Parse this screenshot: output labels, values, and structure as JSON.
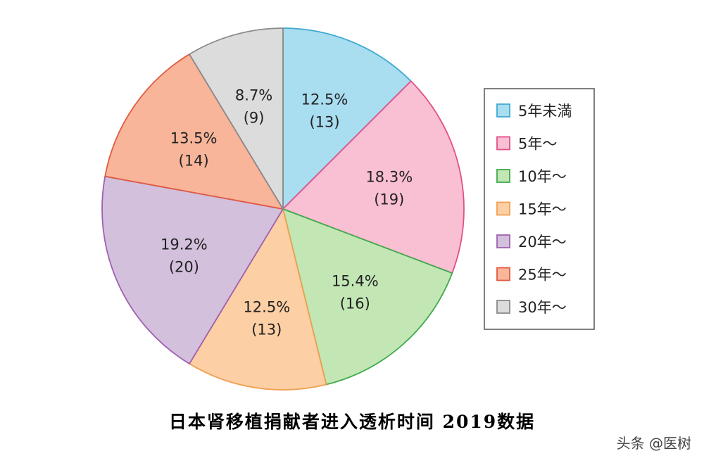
{
  "chart_data": {
    "type": "pie",
    "categories": [
      "5年未満",
      "5年～",
      "10年～",
      "15年～",
      "20年～",
      "25年～",
      "30年～"
    ],
    "values": [
      13,
      19,
      16,
      13,
      20,
      14,
      9
    ],
    "percent_labels": [
      "12.5%",
      "18.3%",
      "15.4%",
      "12.5%",
      "19.2%",
      "13.5%",
      "8.7%"
    ],
    "count_labels": [
      "(13)",
      "(19)",
      "(16)",
      "(13)",
      "(20)",
      "(14)",
      "(9)"
    ],
    "fill_colors": [
      "#a9ddf0",
      "#f9bfd3",
      "#c3e6b5",
      "#fccfa4",
      "#d3c0dc",
      "#f8b59a",
      "#dcdcdc"
    ],
    "stroke_colors": [
      "#3fa9d0",
      "#e0508a",
      "#3faa4a",
      "#f0a050",
      "#a060b0",
      "#e05a40",
      "#8a8a8a"
    ],
    "start_angle": "12 o'clock",
    "direction": "clockwise",
    "legend_position": "right"
  },
  "caption": "日本肾移植捐献者进入透析时间 2019数据",
  "watermark": "头条 @医树"
}
